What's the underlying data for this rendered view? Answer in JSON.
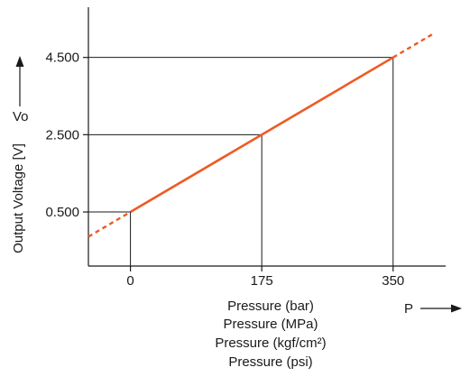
{
  "chart_data": {
    "type": "line",
    "title": "",
    "ylabel": "Output Voltage [V]",
    "ysymbol": "Vo",
    "xsymbol": "P",
    "xlabels": [
      "Pressure (bar)",
      "Pressure (MPa)",
      "Pressure (kgf/cm²)",
      "Pressure (psi)"
    ],
    "x_ticks": [
      0,
      175,
      350
    ],
    "x_tick_labels": [
      "0",
      "175",
      "350"
    ],
    "y_ticks": [
      0.5,
      2.5,
      4.5
    ],
    "y_tick_labels": [
      "0.500",
      "2.500",
      "4.500"
    ],
    "xlim": [
      -56,
      420
    ],
    "ylim": [
      -0.9,
      5.8
    ],
    "series": [
      {
        "solid": {
          "x": [
            0,
            350
          ],
          "y": [
            0.5,
            4.5
          ]
        },
        "dashed_extensions": [
          {
            "x": [
              -56,
              0
            ],
            "y": [
              -0.14,
              0.5
            ]
          },
          {
            "x": [
              350,
              405
            ],
            "y": [
              4.5,
              5.13
            ]
          }
        ]
      }
    ],
    "reference_points": [
      {
        "x": 0,
        "y": 0.5
      },
      {
        "x": 175,
        "y": 2.5
      },
      {
        "x": 350,
        "y": 4.5
      }
    ],
    "line_color": "#ee5a24",
    "axis_color": "#1a1a1a",
    "grid": false
  }
}
